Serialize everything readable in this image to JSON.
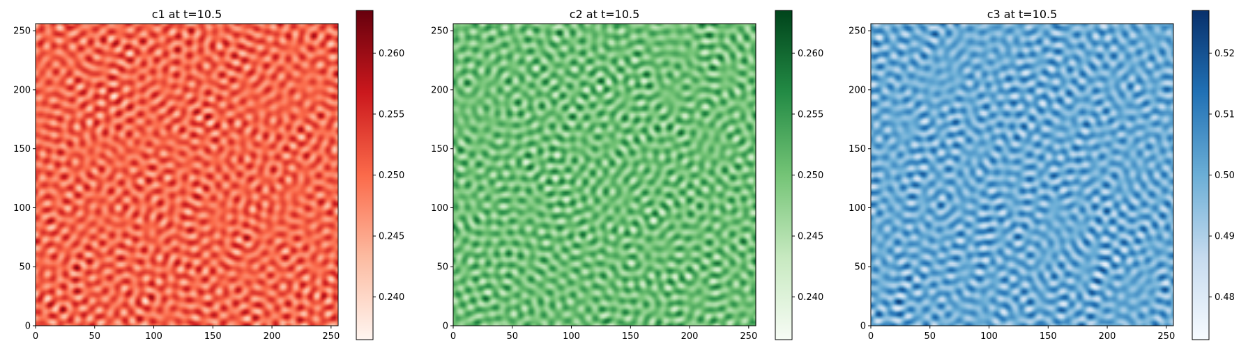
{
  "chart_data": [
    {
      "type": "heatmap",
      "title": "c1 at t=10.5",
      "colormap": "Reds",
      "colormap_stops": [
        "#fff5f0",
        "#fcbba1",
        "#fb6a4a",
        "#cb181d",
        "#67000d"
      ],
      "xlim": [
        0,
        256
      ],
      "ylim": [
        0,
        256
      ],
      "x_ticks": [
        "0",
        "50",
        "100",
        "150",
        "200",
        "250"
      ],
      "y_ticks": [
        "0",
        "50",
        "100",
        "150",
        "200",
        "250"
      ],
      "colorbar_range": [
        0.2365,
        0.2635
      ],
      "colorbar_ticks": [
        "0.240",
        "0.245",
        "0.250",
        "0.255",
        "0.260"
      ],
      "seed": 1
    },
    {
      "type": "heatmap",
      "title": "c2 at t=10.5",
      "colormap": "Greens",
      "colormap_stops": [
        "#f7fcf5",
        "#c7e9c0",
        "#74c476",
        "#238b45",
        "#00441b"
      ],
      "xlim": [
        0,
        256
      ],
      "ylim": [
        0,
        256
      ],
      "x_ticks": [
        "0",
        "50",
        "100",
        "150",
        "200",
        "250"
      ],
      "y_ticks": [
        "0",
        "50",
        "100",
        "150",
        "200",
        "250"
      ],
      "colorbar_range": [
        0.2365,
        0.2635
      ],
      "colorbar_ticks": [
        "0.240",
        "0.245",
        "0.250",
        "0.255",
        "0.260"
      ],
      "seed": 2
    },
    {
      "type": "heatmap",
      "title": "c3 at t=10.5",
      "colormap": "Blues",
      "colormap_stops": [
        "#f7fbff",
        "#c6dbef",
        "#6baed6",
        "#2171b5",
        "#08306b"
      ],
      "xlim": [
        0,
        256
      ],
      "ylim": [
        0,
        256
      ],
      "x_ticks": [
        "0",
        "50",
        "100",
        "150",
        "200",
        "250"
      ],
      "y_ticks": [
        "0",
        "50",
        "100",
        "150",
        "200",
        "250"
      ],
      "colorbar_range": [
        0.473,
        0.527
      ],
      "colorbar_ticks": [
        "0.48",
        "0.49",
        "0.50",
        "0.51",
        "0.52"
      ],
      "seed": 3
    }
  ]
}
